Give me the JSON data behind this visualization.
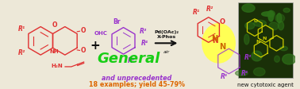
{
  "bg_color": "#ede8d8",
  "pd_text": "Pd(OAc)₂\nX-Phos",
  "air_text": "air",
  "and_unprec_text": "and unprecedented",
  "examples_text": "18 examples; yield 45-79%",
  "new_cytotoxic_text": "new cytotoxic agent",
  "general_text": "General",
  "colors": {
    "red": "#e03030",
    "purple": "#9933cc",
    "green": "#00cc00",
    "orange": "#dd6600",
    "black": "#111111",
    "yellow": "#ffff55",
    "blue_gray": "#6688aa",
    "bg": "#ede8d8",
    "dark_green_bg": "#1a3008",
    "yellow_struct": "#cccc00"
  }
}
